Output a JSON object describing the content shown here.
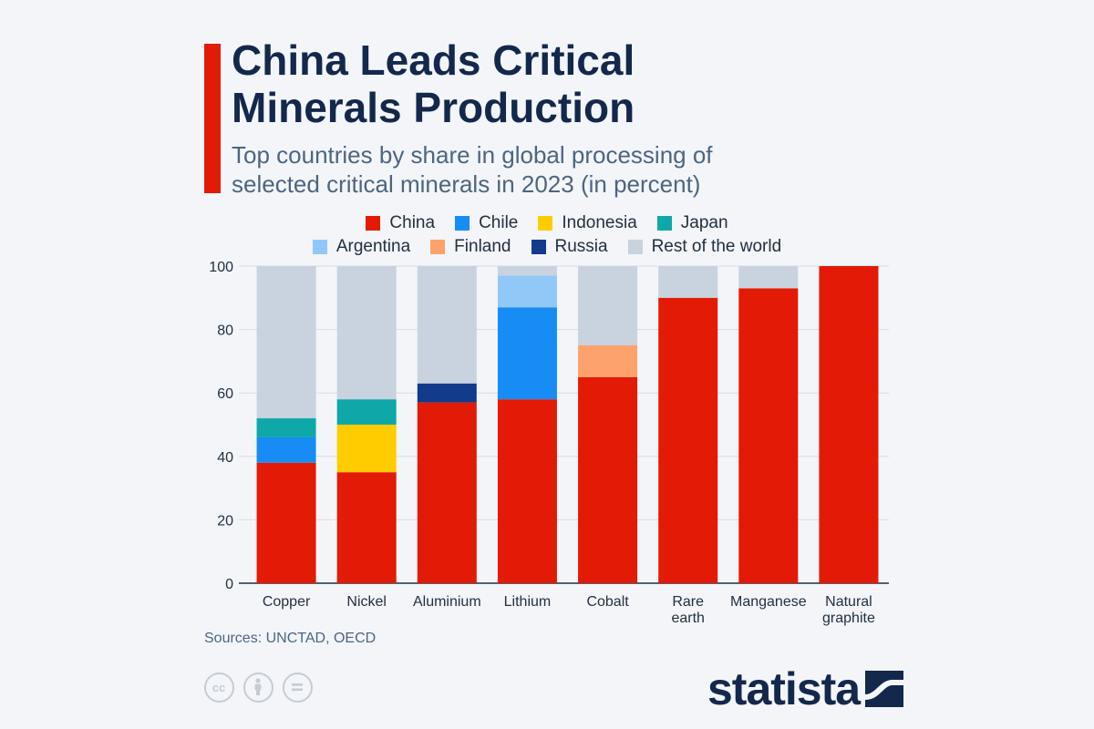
{
  "header": {
    "title_line1": "China Leads Critical",
    "title_line2": "Minerals Production",
    "subtitle_line1": "Top countries by share in global processing of",
    "subtitle_line2": "selected critical minerals in 2023 (in percent)"
  },
  "footer": {
    "sources": "Sources: UNCTAD, OECD",
    "logo": "statista",
    "license_icons": [
      "cc-icon",
      "attribution-icon",
      "no-derivatives-icon"
    ]
  },
  "colors": {
    "China": "#e31a06",
    "Chile": "#178cf5",
    "Indonesia": "#ffcc00",
    "Japan": "#0fa8a8",
    "Argentina": "#92c8f8",
    "Finland": "#fda26c",
    "Russia": "#123c8b",
    "Rest of the world": "#c8d3df"
  },
  "chart_data": {
    "type": "bar",
    "stacked": true,
    "title": "China Leads Critical Minerals Production",
    "subtitle": "Top countries by share in global processing of selected critical minerals in 2023 (in percent)",
    "xlabel": "",
    "ylabel": "",
    "ylim": [
      0,
      100
    ],
    "yticks": [
      0,
      20,
      40,
      60,
      80,
      100
    ],
    "grid": true,
    "legend_position": "top",
    "legend_rows": [
      [
        "China",
        "Chile",
        "Indonesia",
        "Japan"
      ],
      [
        "Argentina",
        "Finland",
        "Russia",
        "Rest of the world"
      ]
    ],
    "categories": [
      "Copper",
      "Nickel",
      "Aluminium",
      "Lithium",
      "Cobalt",
      "Rare earth",
      "Manganese",
      "Natural graphite"
    ],
    "category_labels": [
      [
        "Copper"
      ],
      [
        "Nickel"
      ],
      [
        "Aluminium"
      ],
      [
        "Lithium"
      ],
      [
        "Cobalt"
      ],
      [
        "Rare",
        "earth"
      ],
      [
        "Manganese"
      ],
      [
        "Natural",
        "graphite"
      ]
    ],
    "series": [
      {
        "name": "China",
        "values": [
          38,
          35,
          57,
          58,
          65,
          90,
          93,
          100
        ]
      },
      {
        "name": "Chile",
        "values": [
          8,
          0,
          0,
          29,
          0,
          0,
          0,
          0
        ]
      },
      {
        "name": "Indonesia",
        "values": [
          0,
          15,
          0,
          0,
          0,
          0,
          0,
          0
        ]
      },
      {
        "name": "Japan",
        "values": [
          6,
          8,
          0,
          0,
          0,
          0,
          0,
          0
        ]
      },
      {
        "name": "Argentina",
        "values": [
          0,
          0,
          0,
          10,
          0,
          0,
          0,
          0
        ]
      },
      {
        "name": "Finland",
        "values": [
          0,
          0,
          0,
          0,
          10,
          0,
          0,
          0
        ]
      },
      {
        "name": "Russia",
        "values": [
          0,
          0,
          6,
          0,
          0,
          0,
          0,
          0
        ]
      },
      {
        "name": "Rest of the world",
        "values": [
          48,
          42,
          37,
          3,
          25,
          10,
          7,
          0
        ]
      }
    ]
  }
}
